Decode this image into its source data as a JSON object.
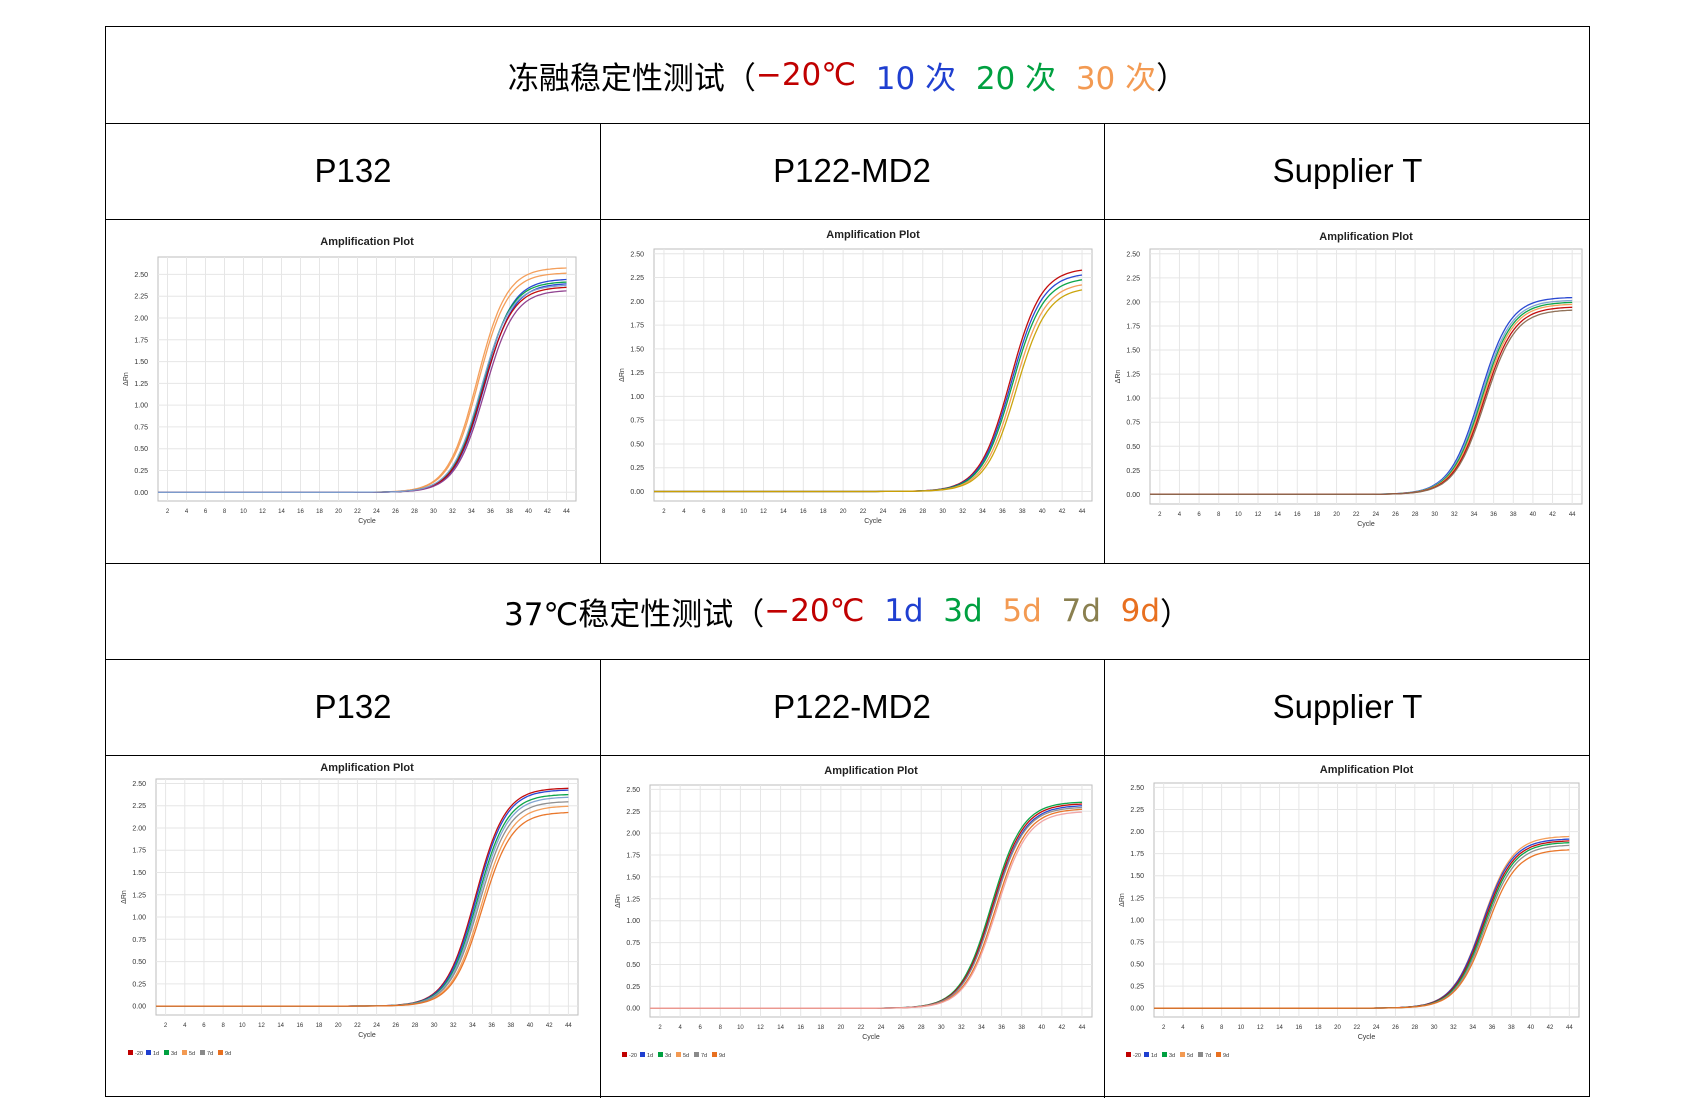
{
  "section1": {
    "title_parts": [
      {
        "text": "冻融稳定性测试（",
        "color": "#000000"
      },
      {
        "text": "−20℃",
        "color": "#c00000"
      },
      {
        "text": "  10 次",
        "color": "#1f3fd0"
      },
      {
        "text": "  20 次",
        "color": "#00a040"
      },
      {
        "text": "  30 次",
        "color": "#f39a52"
      },
      {
        "text": "）",
        "color": "#000000"
      }
    ],
    "names": [
      "P132",
      "P122-MD2",
      "Supplier T"
    ]
  },
  "section2": {
    "title_parts": [
      {
        "text": "37℃稳定性测试（",
        "color": "#000000"
      },
      {
        "text": "−20℃",
        "color": "#c00000"
      },
      {
        "text": "  1d",
        "color": "#1f3fd0"
      },
      {
        "text": "  3d",
        "color": "#00a040"
      },
      {
        "text": "  5d",
        "color": "#f39a52"
      },
      {
        "text": "  7d",
        "color": "#8a8050"
      },
      {
        "text": "  9d",
        "color": "#e87020"
      },
      {
        "text": "）",
        "color": "#000000"
      }
    ],
    "names": [
      "P132",
      "P122-MD2",
      "Supplier T"
    ]
  },
  "chart_data": [
    {
      "id": "s1-p132",
      "type": "line",
      "title": "Amplification Plot",
      "xlabel": "Cycle",
      "ylabel": "ΔRn",
      "xlim": [
        1,
        45
      ],
      "ylim": [
        -0.1,
        2.7
      ],
      "yticks": [
        0,
        0.25,
        0.5,
        0.75,
        1.0,
        1.25,
        1.5,
        1.75,
        2.0,
        2.25,
        2.5
      ],
      "xticks": [
        2,
        4,
        6,
        8,
        10,
        12,
        14,
        16,
        18,
        20,
        22,
        24,
        26,
        28,
        30,
        32,
        34,
        36,
        38,
        40,
        42,
        44
      ],
      "series": [
        {
          "color": "#f39a52",
          "plateau": 2.58,
          "ct": 34.6
        },
        {
          "color": "#f39a52",
          "plateau": 2.52,
          "ct": 34.7
        },
        {
          "color": "#1f3fd0",
          "plateau": 2.45,
          "ct": 35.2
        },
        {
          "color": "#1f3fd0",
          "plateau": 2.4,
          "ct": 35.3
        },
        {
          "color": "#00a040",
          "plateau": 2.42,
          "ct": 35.1
        },
        {
          "color": "#c00000",
          "plateau": 2.36,
          "ct": 35.2
        },
        {
          "color": "#8b3a8b",
          "plateau": 2.32,
          "ct": 35.4
        },
        {
          "color": "#7aa0d0",
          "plateau": 2.38,
          "ct": 35.0
        }
      ]
    },
    {
      "id": "s1-p122",
      "type": "line",
      "title": "Amplification Plot",
      "xlabel": "Cycle",
      "ylabel": "ΔRn",
      "xlim": [
        1,
        45
      ],
      "ylim": [
        -0.1,
        2.55
      ],
      "yticks": [
        0,
        0.25,
        0.5,
        0.75,
        1.0,
        1.25,
        1.5,
        1.75,
        2.0,
        2.25,
        2.5
      ],
      "xticks": [
        2,
        4,
        6,
        8,
        10,
        12,
        14,
        16,
        18,
        20,
        22,
        24,
        26,
        28,
        30,
        32,
        34,
        36,
        38,
        40,
        42,
        44
      ],
      "series": [
        {
          "color": "#c00000",
          "plateau": 2.35,
          "ct": 36.8
        },
        {
          "color": "#1f3fd0",
          "plateau": 2.3,
          "ct": 36.9
        },
        {
          "color": "#00a040",
          "plateau": 2.25,
          "ct": 37.0
        },
        {
          "color": "#f39a52",
          "plateau": 2.2,
          "ct": 37.2
        },
        {
          "color": "#c8a000",
          "plateau": 2.15,
          "ct": 37.4
        }
      ]
    },
    {
      "id": "s1-supt",
      "type": "line",
      "title": "Amplification Plot",
      "xlabel": "Cycle",
      "ylabel": "ΔRn",
      "xlim": [
        1,
        45
      ],
      "ylim": [
        -0.1,
        2.55
      ],
      "yticks": [
        0,
        0.25,
        0.5,
        0.75,
        1.0,
        1.25,
        1.5,
        1.75,
        2.0,
        2.25,
        2.5
      ],
      "xticks": [
        2,
        4,
        6,
        8,
        10,
        12,
        14,
        16,
        18,
        20,
        22,
        24,
        26,
        28,
        30,
        32,
        34,
        36,
        38,
        40,
        42,
        44
      ],
      "series": [
        {
          "color": "#1f3fd0",
          "plateau": 2.05,
          "ct": 34.6
        },
        {
          "color": "#7aa0d0",
          "plateau": 2.02,
          "ct": 34.7
        },
        {
          "color": "#00a040",
          "plateau": 2.0,
          "ct": 34.8
        },
        {
          "color": "#f39a52",
          "plateau": 1.98,
          "ct": 34.9
        },
        {
          "color": "#c00000",
          "plateau": 1.95,
          "ct": 35.0
        },
        {
          "color": "#8a6a50",
          "plateau": 1.92,
          "ct": 35.1
        }
      ]
    },
    {
      "id": "s2-p132",
      "type": "line",
      "title": "Amplification Plot",
      "xlabel": "Cycle",
      "ylabel": "ΔRn",
      "xlim": [
        1,
        45
      ],
      "ylim": [
        -0.1,
        2.55
      ],
      "yticks": [
        0,
        0.25,
        0.5,
        0.75,
        1.0,
        1.25,
        1.5,
        1.75,
        2.0,
        2.25,
        2.5
      ],
      "xticks": [
        2,
        4,
        6,
        8,
        10,
        12,
        14,
        16,
        18,
        20,
        22,
        24,
        26,
        28,
        30,
        32,
        34,
        36,
        38,
        40,
        42,
        44
      ],
      "legend": [
        "-20",
        "1d",
        "3d",
        "5d",
        "7d",
        "9d"
      ],
      "legend_colors": [
        "#c00000",
        "#1f3fd0",
        "#00a040",
        "#f39a52",
        "#8a8a8a",
        "#e87020"
      ],
      "series": [
        {
          "color": "#c00000",
          "plateau": 2.45,
          "ct": 34.3
        },
        {
          "color": "#1f3fd0",
          "plateau": 2.43,
          "ct": 34.4
        },
        {
          "color": "#00a040",
          "plateau": 2.38,
          "ct": 34.5
        },
        {
          "color": "#7aa0d0",
          "plateau": 2.35,
          "ct": 34.6
        },
        {
          "color": "#f39a52",
          "plateau": 2.25,
          "ct": 34.9
        },
        {
          "color": "#8a8a8a",
          "plateau": 2.3,
          "ct": 34.7
        },
        {
          "color": "#e87020",
          "plateau": 2.18,
          "ct": 35.0
        }
      ]
    },
    {
      "id": "s2-p122",
      "type": "line",
      "title": "Amplification Plot",
      "xlabel": "Cycle",
      "ylabel": "ΔRn",
      "xlim": [
        1,
        45
      ],
      "ylim": [
        -0.1,
        2.55
      ],
      "yticks": [
        0,
        0.25,
        0.5,
        0.75,
        1.0,
        1.25,
        1.5,
        1.75,
        2.0,
        2.25,
        2.5
      ],
      "xticks": [
        2,
        4,
        6,
        8,
        10,
        12,
        14,
        16,
        18,
        20,
        22,
        24,
        26,
        28,
        30,
        32,
        34,
        36,
        38,
        40,
        42,
        44
      ],
      "legend": [
        "-20",
        "1d",
        "3d",
        "5d",
        "7d",
        "9d"
      ],
      "legend_colors": [
        "#c00000",
        "#1f3fd0",
        "#00a040",
        "#f39a52",
        "#8a8a8a",
        "#e87020"
      ],
      "series": [
        {
          "color": "#00a040",
          "plateau": 2.36,
          "ct": 35.0
        },
        {
          "color": "#c00000",
          "plateau": 2.34,
          "ct": 35.1
        },
        {
          "color": "#1f3fd0",
          "plateau": 2.32,
          "ct": 35.2
        },
        {
          "color": "#8a8a8a",
          "plateau": 2.3,
          "ct": 35.2
        },
        {
          "color": "#e87020",
          "plateau": 2.28,
          "ct": 35.4
        },
        {
          "color": "#f0a0a0",
          "plateau": 2.25,
          "ct": 35.5
        }
      ]
    },
    {
      "id": "s2-supt",
      "type": "line",
      "title": "Amplification Plot",
      "xlabel": "Cycle",
      "ylabel": "ΔRn",
      "xlim": [
        1,
        45
      ],
      "ylim": [
        -0.1,
        2.55
      ],
      "yticks": [
        0,
        0.25,
        0.5,
        0.75,
        1.0,
        1.25,
        1.5,
        1.75,
        2.0,
        2.25,
        2.5
      ],
      "xticks": [
        2,
        4,
        6,
        8,
        10,
        12,
        14,
        16,
        18,
        20,
        22,
        24,
        26,
        28,
        30,
        32,
        34,
        36,
        38,
        40,
        42,
        44
      ],
      "legend": [
        "-20",
        "1d",
        "3d",
        "5d",
        "7d",
        "9d"
      ],
      "legend_colors": [
        "#c00000",
        "#1f3fd0",
        "#00a040",
        "#f39a52",
        "#8a8a8a",
        "#e87020"
      ],
      "series": [
        {
          "color": "#f39a52",
          "plateau": 1.95,
          "ct": 35.0
        },
        {
          "color": "#1f3fd0",
          "plateau": 1.92,
          "ct": 35.0
        },
        {
          "color": "#c00000",
          "plateau": 1.9,
          "ct": 35.1
        },
        {
          "color": "#00a040",
          "plateau": 1.88,
          "ct": 35.2
        },
        {
          "color": "#8a8a8a",
          "plateau": 1.85,
          "ct": 35.3
        },
        {
          "color": "#e87020",
          "plateau": 1.8,
          "ct": 35.4
        }
      ]
    }
  ]
}
